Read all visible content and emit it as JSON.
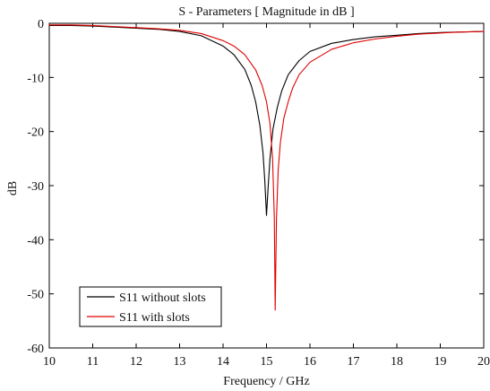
{
  "chart_data": {
    "type": "line",
    "title": "S - Parameters [ Magnitude in dB ]",
    "xlabel": "Frequency / GHz",
    "ylabel": "dB",
    "xlim": [
      10,
      20
    ],
    "ylim": [
      -60,
      0
    ],
    "xticks": [
      10,
      11,
      12,
      13,
      14,
      15,
      16,
      17,
      18,
      19,
      20
    ],
    "yticks": [
      0,
      -10,
      -20,
      -30,
      -40,
      -50,
      -60
    ],
    "grid": false,
    "legend_position": "bottom-left",
    "series": [
      {
        "name": "S11 without slots",
        "color": "#000000",
        "x": [
          10,
          10.5,
          11,
          11.5,
          12,
          12.5,
          13,
          13.5,
          14,
          14.25,
          14.5,
          14.65,
          14.75,
          14.85,
          14.92,
          14.96,
          15,
          15.04,
          15.08,
          15.15,
          15.25,
          15.35,
          15.5,
          15.75,
          16,
          16.5,
          17,
          17.5,
          18,
          18.5,
          19,
          19.5,
          20
        ],
        "y": [
          -0.4,
          -0.4,
          -0.5,
          -0.7,
          -0.9,
          -1.1,
          -1.5,
          -2.3,
          -4.2,
          -5.8,
          -8.5,
          -11.5,
          -14.5,
          -19,
          -24,
          -29,
          -35.5,
          -30,
          -25,
          -19.5,
          -15.5,
          -12.5,
          -9.5,
          -6.9,
          -5.2,
          -3.7,
          -3.0,
          -2.5,
          -2.2,
          -1.9,
          -1.7,
          -1.6,
          -1.5
        ]
      },
      {
        "name": "S11 with slots",
        "color": "#e00000",
        "x": [
          10,
          10.5,
          11,
          11.5,
          12,
          12.5,
          13,
          13.5,
          14,
          14.25,
          14.5,
          14.75,
          14.9,
          15,
          15.08,
          15.14,
          15.18,
          15.2,
          15.23,
          15.27,
          15.32,
          15.4,
          15.5,
          15.6,
          15.75,
          16,
          16.5,
          17,
          17.5,
          18,
          18.5,
          19,
          19.5,
          20
        ],
        "y": [
          -0.3,
          -0.3,
          -0.4,
          -0.6,
          -0.8,
          -1.0,
          -1.3,
          -1.9,
          -3.2,
          -4.2,
          -5.8,
          -8.6,
          -11.5,
          -14.5,
          -18.5,
          -25,
          -36,
          -53,
          -36,
          -27,
          -22,
          -17.5,
          -14.5,
          -12,
          -9.5,
          -7.2,
          -4.8,
          -3.6,
          -2.9,
          -2.4,
          -2.0,
          -1.8,
          -1.6,
          -1.5
        ]
      }
    ]
  }
}
